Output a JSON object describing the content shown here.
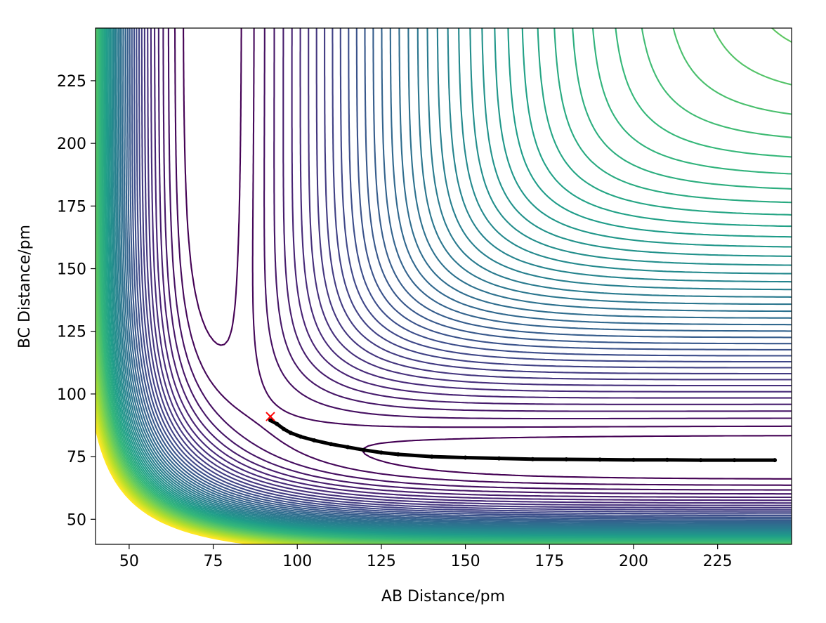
{
  "chart_data": {
    "type": "contour",
    "title": "",
    "xlabel": "AB Distance/pm",
    "ylabel": "BC Distance/pm",
    "xlim": [
      40,
      247
    ],
    "ylim": [
      40,
      246
    ],
    "xticks": [
      50,
      75,
      100,
      125,
      150,
      175,
      200,
      225
    ],
    "yticks": [
      50,
      75,
      100,
      125,
      150,
      175,
      200,
      225
    ],
    "grid": false,
    "legend": "none",
    "colormap": "viridis",
    "colormap_stops": [
      "#440154",
      "#482878",
      "#3e4989",
      "#31688e",
      "#26828e",
      "#1f9e89",
      "#35b779",
      "#6ece58",
      "#b5de2b",
      "#fde725"
    ],
    "contour_line_count": 52,
    "potential_minimum": {
      "ab": 74,
      "bc": 74
    },
    "series": [
      {
        "kind": "trajectory",
        "color": "#000000",
        "x": [
          92,
          94,
          96,
          98,
          101,
          105,
          110,
          115,
          120,
          125,
          130,
          140,
          150,
          160,
          170,
          180,
          190,
          200,
          210,
          220,
          230,
          242
        ],
        "y": [
          89.5,
          88.0,
          86.0,
          84.5,
          83.0,
          81.5,
          80.0,
          78.8,
          77.6,
          76.6,
          75.9,
          75.0,
          74.6,
          74.3,
          74.0,
          73.9,
          73.8,
          73.7,
          73.7,
          73.6,
          73.6,
          73.6
        ]
      },
      {
        "kind": "start-marker",
        "marker": "x",
        "color": "#ff0000",
        "x": [
          92
        ],
        "y": [
          91
        ]
      }
    ]
  }
}
